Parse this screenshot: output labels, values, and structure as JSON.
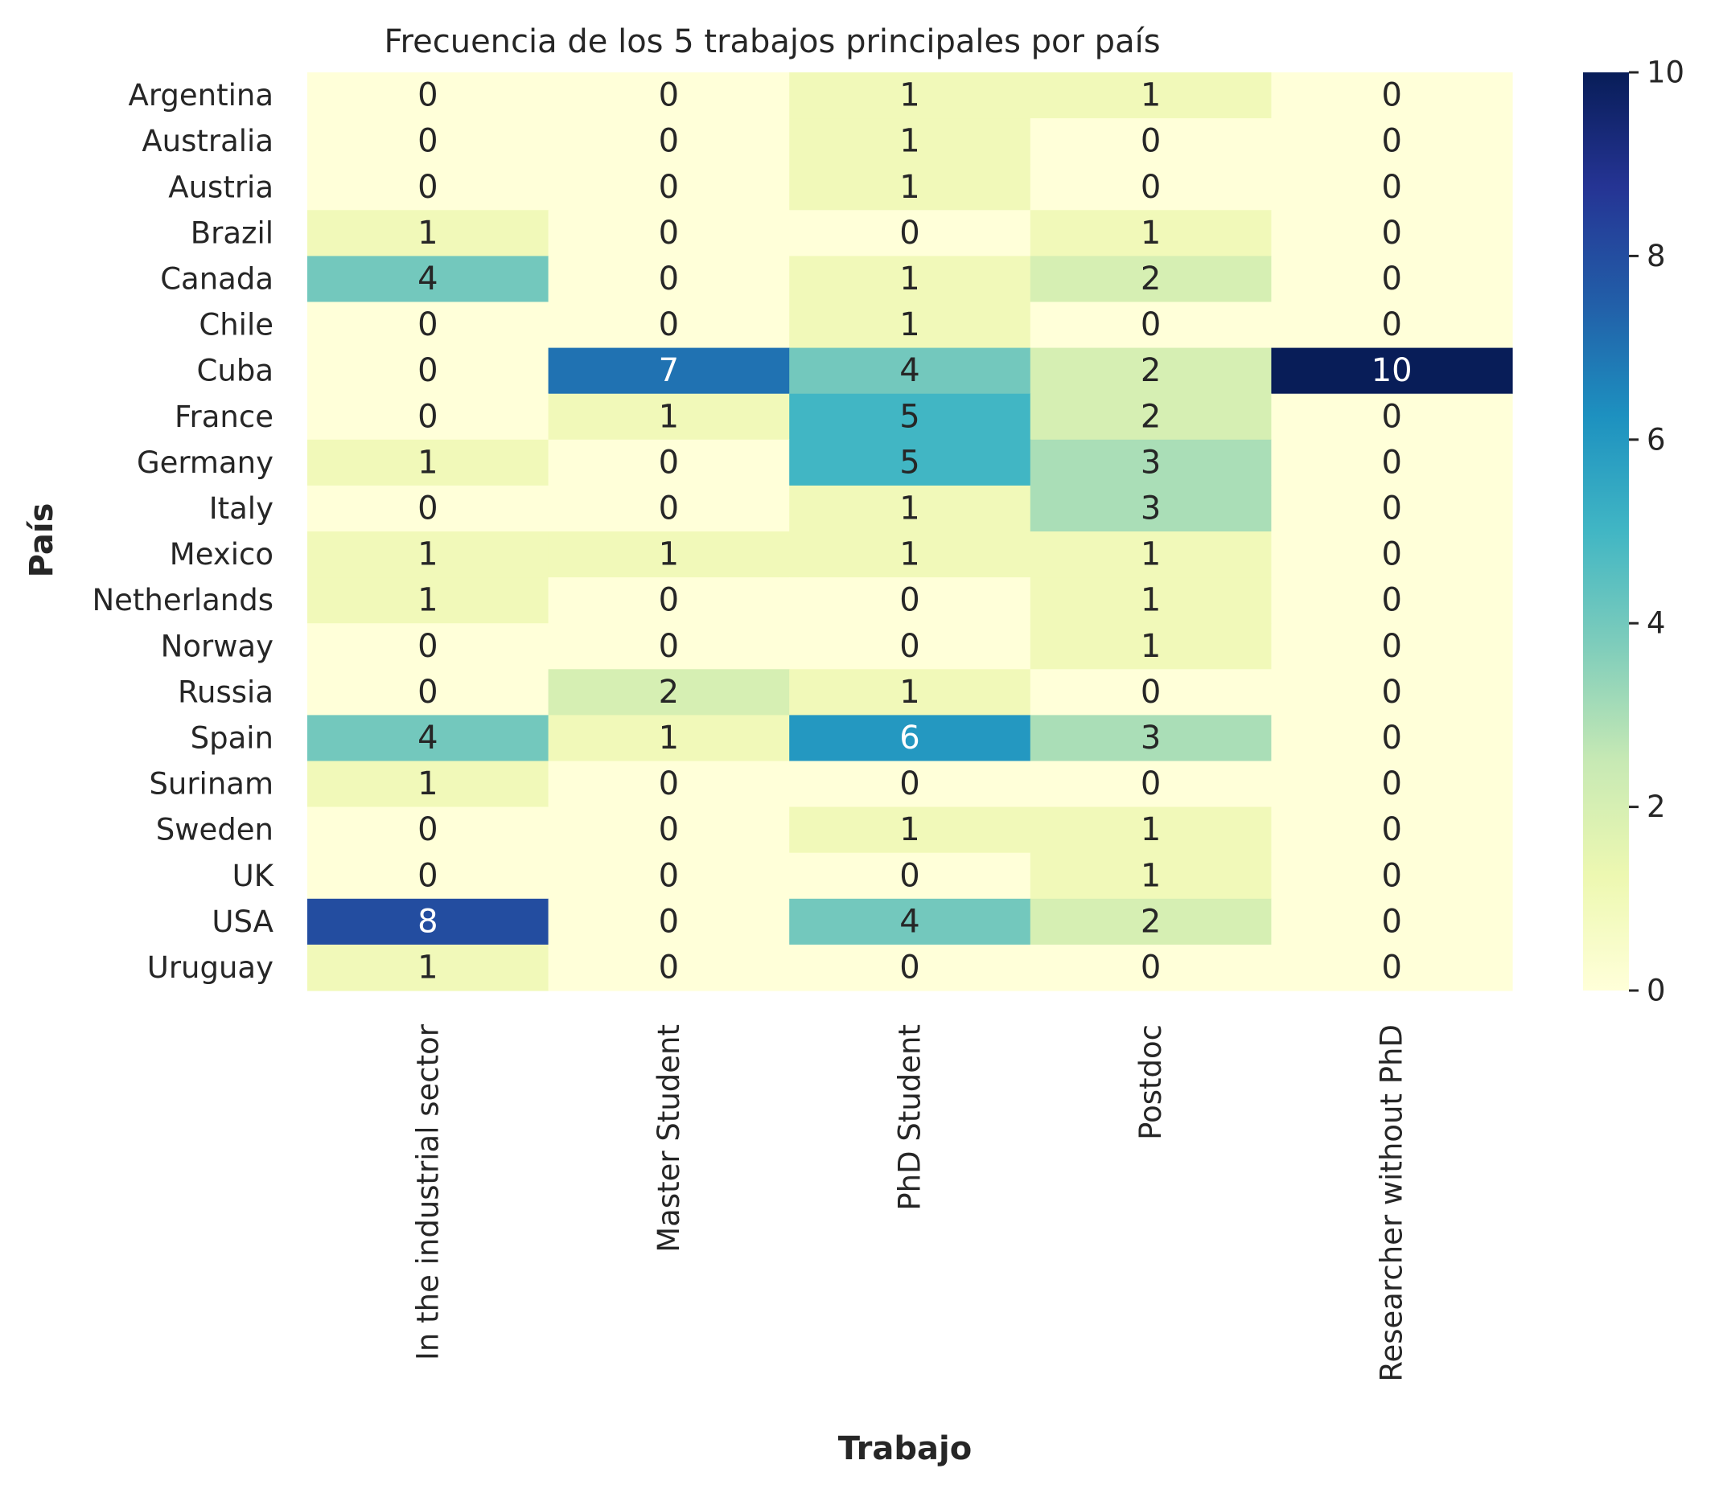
{
  "chart_data": {
    "type": "heatmap",
    "title": "Frecuencia de los 5 trabajos principales por país",
    "xlabel": "Trabajo",
    "ylabel": "País",
    "columns": [
      "In the industrial sector",
      "Master Student",
      "PhD Student",
      "Postdoc",
      "Researcher without PhD"
    ],
    "rows": [
      "Argentina",
      "Australia",
      "Austria",
      "Brazil",
      "Canada",
      "Chile",
      "Cuba",
      "France",
      "Germany",
      "Italy",
      "Mexico",
      "Netherlands",
      "Norway",
      "Russia",
      "Spain",
      "Surinam",
      "Sweden",
      "UK",
      "USA",
      "Uruguay"
    ],
    "values": [
      [
        0,
        0,
        1,
        1,
        0
      ],
      [
        0,
        0,
        1,
        0,
        0
      ],
      [
        0,
        0,
        1,
        0,
        0
      ],
      [
        1,
        0,
        0,
        1,
        0
      ],
      [
        4,
        0,
        1,
        2,
        0
      ],
      [
        0,
        0,
        1,
        0,
        0
      ],
      [
        0,
        7,
        4,
        2,
        10
      ],
      [
        0,
        1,
        5,
        2,
        0
      ],
      [
        1,
        0,
        5,
        3,
        0
      ],
      [
        0,
        0,
        1,
        3,
        0
      ],
      [
        1,
        1,
        1,
        1,
        0
      ],
      [
        1,
        0,
        0,
        1,
        0
      ],
      [
        0,
        0,
        0,
        1,
        0
      ],
      [
        0,
        2,
        1,
        0,
        0
      ],
      [
        4,
        1,
        6,
        3,
        0
      ],
      [
        1,
        0,
        0,
        0,
        0
      ],
      [
        0,
        0,
        1,
        1,
        0
      ],
      [
        0,
        0,
        0,
        1,
        0
      ],
      [
        8,
        0,
        4,
        2,
        0
      ],
      [
        1,
        0,
        0,
        0,
        0
      ]
    ],
    "colorbar": {
      "range": [
        0,
        10
      ],
      "ticks": [
        "0",
        "2",
        "4",
        "6",
        "8",
        "10"
      ],
      "colormap": "YlGnBu",
      "stops": [
        "#ffffd9",
        "#edf8b1",
        "#c7e9b4",
        "#7fcdbb",
        "#41b6c4",
        "#1d91c0",
        "#225ea8",
        "#253494",
        "#081d58"
      ]
    },
    "grid": false,
    "annotated": true
  }
}
